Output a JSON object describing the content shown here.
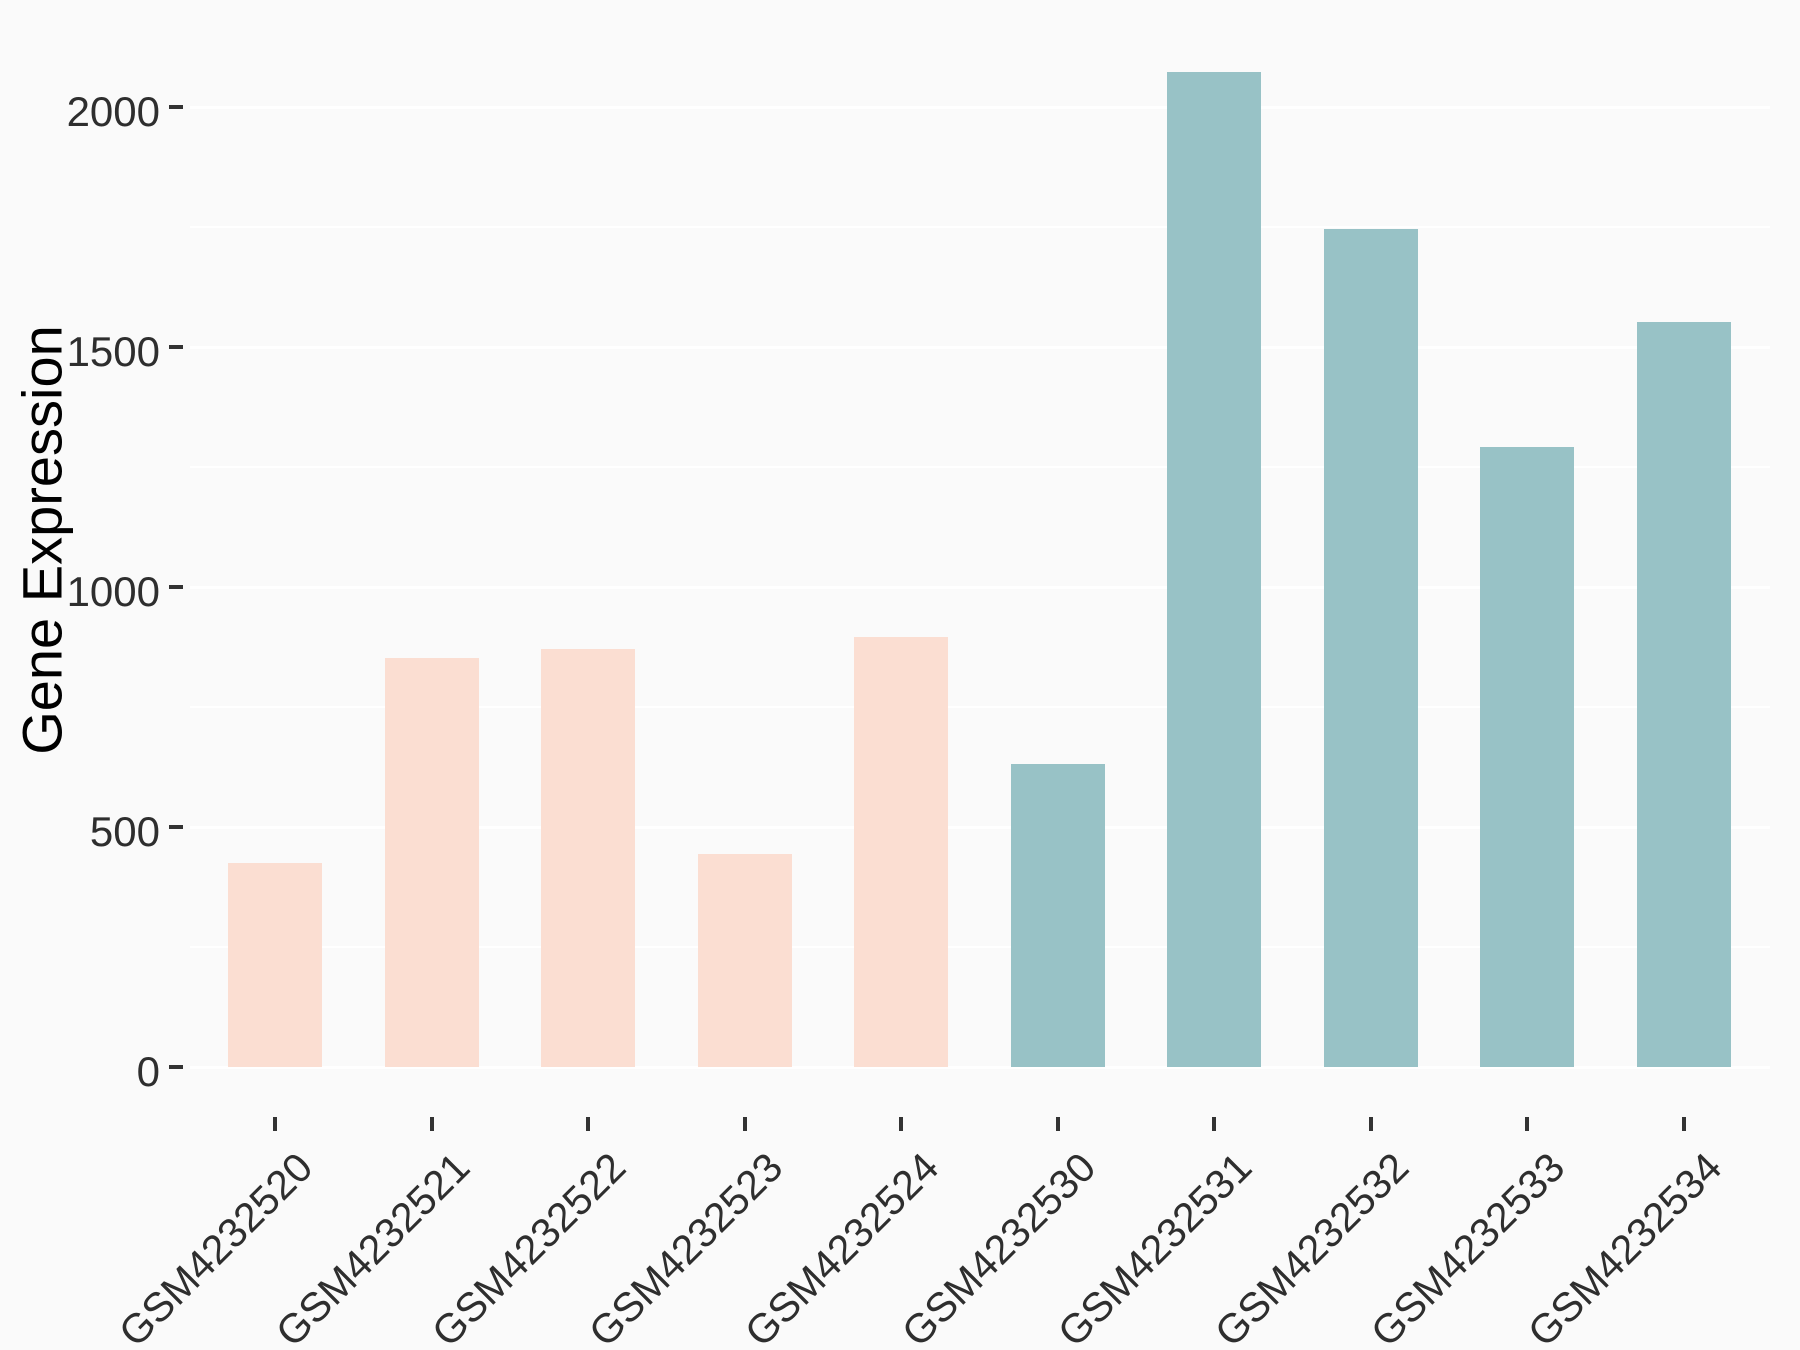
{
  "colors": {
    "background": "#FAFAFA",
    "gridline": "#FFFFFF",
    "tick_mark": "#333333",
    "axis_text": "#2E2E2E",
    "group_pink": "#FBDED2",
    "group_teal": "#98C2C6"
  },
  "chart_data": {
    "type": "bar",
    "title": "",
    "xlabel": "",
    "ylabel": "Gene Expression",
    "categories": [
      "GSM4232520",
      "GSM4232521",
      "GSM4232522",
      "GSM4232523",
      "GSM4232524",
      "GSM4232530",
      "GSM4232531",
      "GSM4232532",
      "GSM4232533",
      "GSM4232534"
    ],
    "series": [
      {
        "name": "Gene Expression",
        "values": [
          425,
          852,
          871,
          444,
          895,
          631,
          2073,
          1746,
          1292,
          1552
        ]
      }
    ],
    "bar_colors": [
      "#FBDED2",
      "#FBDED2",
      "#FBDED2",
      "#FBDED2",
      "#FBDED2",
      "#98C2C6",
      "#98C2C6",
      "#98C2C6",
      "#98C2C6",
      "#98C2C6"
    ],
    "ylim": [
      0,
      2175
    ],
    "yticks": [
      0,
      500,
      1000,
      1500,
      2000
    ],
    "ytick_labels": [
      "0",
      "500",
      "1000",
      "1500",
      "2000"
    ],
    "minor_ticks": [
      250,
      750,
      1250,
      1750
    ],
    "grid": "horizontal white gridlines on light gray panel",
    "legend": "none",
    "x_label_rotation_deg": 45
  }
}
